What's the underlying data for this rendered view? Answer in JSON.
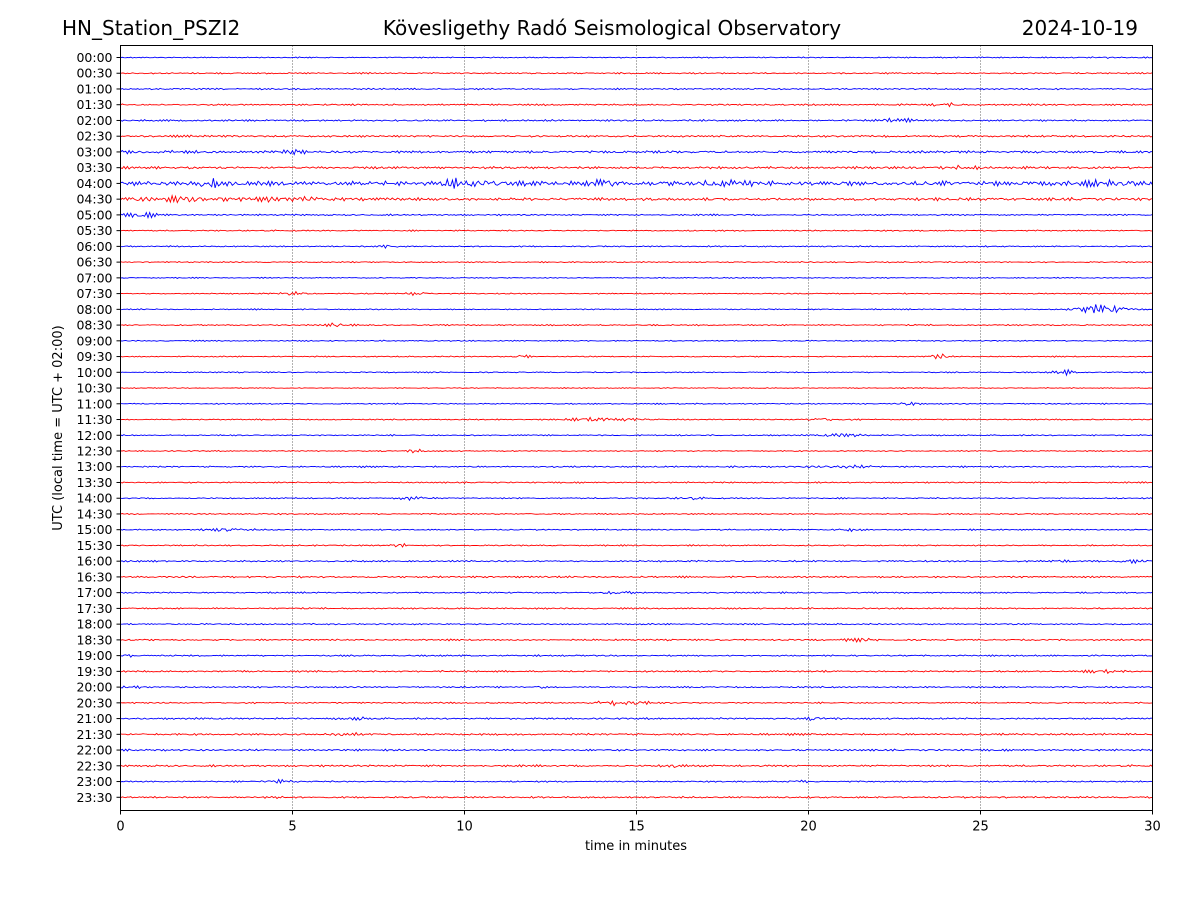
{
  "header": {
    "station": "HN_Station_PSZI2",
    "observatory": "Kövesligethy Radó Seismological Observatory",
    "date": "2024-10-19"
  },
  "chart_data": {
    "type": "line",
    "title": "Kövesligethy Radó Seismological Observatory",
    "xlabel": "time in minutes",
    "ylabel": "UTC (local time = UTC + 02:00)",
    "xlim": [
      0,
      30
    ],
    "xticks": [
      "0",
      "5",
      "10",
      "15",
      "20",
      "25",
      "30"
    ],
    "grid": "vertical dotted lines at each x tick",
    "colors": {
      "even": "#0000ff",
      "odd": "#ff0000",
      "grid": "#000000"
    },
    "traces": [
      {
        "label": "00:00",
        "noise": 0.8,
        "events": [
          [
            28.5,
            0.3,
            1.5
          ]
        ]
      },
      {
        "label": "00:30",
        "noise": 1.0,
        "events": []
      },
      {
        "label": "01:00",
        "noise": 1.0,
        "events": []
      },
      {
        "label": "01:30",
        "noise": 1.1,
        "events": [
          [
            24.0,
            0.4,
            1.5
          ]
        ]
      },
      {
        "label": "02:00",
        "noise": 1.2,
        "events": [
          [
            22.6,
            0.4,
            3
          ]
        ]
      },
      {
        "label": "02:30",
        "noise": 1.3,
        "events": []
      },
      {
        "label": "03:00",
        "noise": 1.6,
        "events": [
          [
            5.0,
            0.3,
            2.5
          ],
          [
            0.5,
            1.5,
            1.2
          ]
        ]
      },
      {
        "label": "03:30",
        "noise": 1.6,
        "events": [
          [
            24.5,
            0.5,
            2
          ]
        ]
      },
      {
        "label": "04:00",
        "noise": 3.0,
        "events": [
          [
            2.6,
            0.4,
            5
          ],
          [
            10.0,
            0.8,
            5
          ],
          [
            14.0,
            0.5,
            4
          ],
          [
            17.6,
            0.6,
            3
          ],
          [
            28.5,
            1.0,
            2
          ]
        ]
      },
      {
        "label": "04:30",
        "noise": 2.0,
        "events": [
          [
            1.5,
            2.0,
            2.5
          ],
          [
            5.0,
            1.0,
            2
          ]
        ]
      },
      {
        "label": "05:00",
        "noise": 1.0,
        "events": [
          [
            0.6,
            0.6,
            2.5
          ]
        ]
      },
      {
        "label": "05:30",
        "noise": 0.9,
        "events": []
      },
      {
        "label": "06:00",
        "noise": 0.9,
        "events": [
          [
            7.8,
            0.4,
            2
          ]
        ]
      },
      {
        "label": "06:30",
        "noise": 0.8,
        "events": []
      },
      {
        "label": "07:00",
        "noise": 0.7,
        "events": []
      },
      {
        "label": "07:30",
        "noise": 0.8,
        "events": [
          [
            5.0,
            0.3,
            3
          ],
          [
            8.6,
            0.3,
            2.5
          ]
        ]
      },
      {
        "label": "08:00",
        "noise": 0.8,
        "events": [
          [
            28.5,
            0.7,
            6
          ]
        ]
      },
      {
        "label": "08:30",
        "noise": 0.9,
        "events": [
          [
            6.3,
            0.3,
            2.5
          ]
        ]
      },
      {
        "label": "09:00",
        "noise": 0.8,
        "events": []
      },
      {
        "label": "09:30",
        "noise": 0.8,
        "events": [
          [
            11.7,
            0.2,
            2.5
          ],
          [
            23.8,
            0.3,
            3
          ]
        ]
      },
      {
        "label": "10:00",
        "noise": 0.8,
        "events": [
          [
            27.4,
            0.3,
            3
          ]
        ]
      },
      {
        "label": "10:30",
        "noise": 0.6,
        "events": []
      },
      {
        "label": "11:00",
        "noise": 0.8,
        "events": [
          [
            22.9,
            0.3,
            2
          ]
        ]
      },
      {
        "label": "11:30",
        "noise": 0.8,
        "events": [
          [
            14.0,
            0.9,
            3
          ],
          [
            20.5,
            0.6,
            1.8
          ]
        ]
      },
      {
        "label": "12:00",
        "noise": 0.9,
        "events": [
          [
            21.0,
            0.5,
            2.5
          ]
        ]
      },
      {
        "label": "12:30",
        "noise": 0.8,
        "events": [
          [
            8.6,
            0.3,
            2.5
          ]
        ]
      },
      {
        "label": "13:00",
        "noise": 1.0,
        "events": [
          [
            21.0,
            1.0,
            1.5
          ]
        ]
      },
      {
        "label": "13:30",
        "noise": 0.9,
        "events": []
      },
      {
        "label": "14:00",
        "noise": 0.9,
        "events": [
          [
            8.5,
            0.4,
            3
          ],
          [
            16.5,
            0.4,
            1.5
          ]
        ]
      },
      {
        "label": "14:30",
        "noise": 0.9,
        "events": []
      },
      {
        "label": "15:00",
        "noise": 0.9,
        "events": [
          [
            3.0,
            0.6,
            2
          ],
          [
            21.2,
            0.3,
            2
          ]
        ]
      },
      {
        "label": "15:30",
        "noise": 0.9,
        "events": [
          [
            8.2,
            0.3,
            2
          ]
        ]
      },
      {
        "label": "16:00",
        "noise": 1.1,
        "events": [
          [
            27.2,
            0.3,
            2
          ],
          [
            29.5,
            0.5,
            2
          ]
        ]
      },
      {
        "label": "16:30",
        "noise": 1.2,
        "events": []
      },
      {
        "label": "17:00",
        "noise": 1.0,
        "events": [
          [
            14.5,
            0.5,
            1.5
          ]
        ]
      },
      {
        "label": "17:30",
        "noise": 1.0,
        "events": []
      },
      {
        "label": "18:00",
        "noise": 1.0,
        "events": []
      },
      {
        "label": "18:30",
        "noise": 1.1,
        "events": [
          [
            21.5,
            0.5,
            1.5
          ]
        ]
      },
      {
        "label": "19:00",
        "noise": 1.0,
        "events": [
          [
            0.2,
            0.2,
            2.5
          ]
        ]
      },
      {
        "label": "19:30",
        "noise": 1.1,
        "events": [
          [
            28.5,
            0.5,
            1.6
          ]
        ]
      },
      {
        "label": "20:00",
        "noise": 1.0,
        "events": [
          [
            0.3,
            0.3,
            2
          ],
          [
            12.2,
            0.3,
            1.6
          ]
        ]
      },
      {
        "label": "20:30",
        "noise": 1.0,
        "events": [
          [
            14.2,
            0.5,
            3
          ],
          [
            15.0,
            0.4,
            2.5
          ]
        ]
      },
      {
        "label": "21:00",
        "noise": 1.2,
        "events": [
          [
            7.0,
            0.5,
            1.8
          ],
          [
            20.3,
            0.5,
            1.6
          ]
        ]
      },
      {
        "label": "21:30",
        "noise": 1.3,
        "events": [
          [
            6.4,
            0.5,
            2
          ]
        ]
      },
      {
        "label": "22:00",
        "noise": 1.2,
        "events": []
      },
      {
        "label": "22:30",
        "noise": 1.3,
        "events": [
          [
            16.0,
            0.3,
            2.5
          ]
        ]
      },
      {
        "label": "23:00",
        "noise": 1.0,
        "events": [
          [
            4.6,
            0.5,
            2
          ],
          [
            19.7,
            0.2,
            2
          ]
        ]
      },
      {
        "label": "23:30",
        "noise": 1.2,
        "events": [
          [
            4.4,
            0.2,
            2.5
          ]
        ]
      }
    ]
  }
}
